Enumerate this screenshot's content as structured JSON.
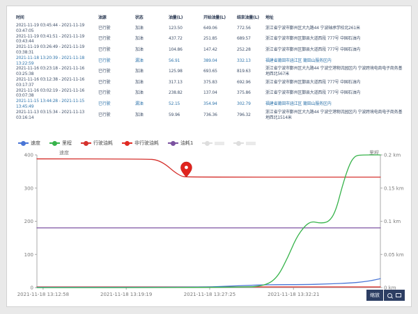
{
  "table": {
    "headers": [
      "时间",
      "油源",
      "状态",
      "油量(L)",
      "开始油量(L)",
      "结束油量(L)",
      "地址"
    ],
    "rows": [
      {
        "time": "2021-11-19 03:45:44 - 2021-11-19 03:47:05",
        "source": "已行驶",
        "status": "加油",
        "amount": "123.50",
        "start": "649.06",
        "end": "772.56",
        "addr": "浙江省宁波市鄞州区大九路44 宁波轴承学校北261米",
        "leak": false
      },
      {
        "time": "2021-11-19 03:41:51 - 2021-11-19 03:43:44",
        "source": "已行驶",
        "status": "加油",
        "amount": "437.72",
        "start": "251.85",
        "end": "689.57",
        "addr": "浙江省宁波市鄞州区鄞县大道西段 777号 中国石油内",
        "leak": false
      },
      {
        "time": "2021-11-19 03:26:49 - 2021-11-19 03:38:31",
        "source": "已行驶",
        "status": "加油",
        "amount": "104.86",
        "start": "147.42",
        "end": "252.28",
        "addr": "浙江省宁波市鄞州区鄞县大道西段 777号 中国石油内",
        "leak": false
      },
      {
        "time": "2021-11-18 13:20:39 - 2021-11-18 13:22:59",
        "source": "已行驶",
        "status": "漏油",
        "amount": "56.91",
        "start": "389.04",
        "end": "332.13",
        "addr": "福建省莆田市涵江区 莆田山服务区内",
        "leak": true
      },
      {
        "time": "2021-11-16 03:23:18 - 2021-11-16 03:25:38",
        "source": "已行驶",
        "status": "加油",
        "amount": "125.98",
        "start": "693.65",
        "end": "819.63",
        "addr": "浙江省宁波市鄞州区大九路44 宁波空港物流园区内 宁波跨境电商电子商务基地西北567米",
        "leak": false
      },
      {
        "time": "2021-11-16 03:12:38 - 2021-11-16 03:17:37",
        "source": "已行驶",
        "status": "加油",
        "amount": "317.13",
        "start": "375.83",
        "end": "692.96",
        "addr": "浙江省宁波市鄞州区鄞县大道西段 777号 中国石油内",
        "leak": false
      },
      {
        "time": "2021-11-16 03:02:19 - 2021-11-16 03:07:38",
        "source": "已行驶",
        "status": "加油",
        "amount": "238.82",
        "start": "137.04",
        "end": "375.86",
        "addr": "浙江省宁波市鄞州区鄞县大道西段 777号 中国石油内",
        "leak": false
      },
      {
        "time": "2021-11-15 13:44:28 - 2021-11-15 13:45:49",
        "source": "已行驶",
        "status": "漏油",
        "amount": "52.15",
        "start": "354.94",
        "end": "302.79",
        "addr": "福建省莆田市涵江区 莆田山服务区内",
        "leak": true
      },
      {
        "time": "2021-11-13 03:15:34 - 2021-11-13 03:16:14",
        "source": "已行驶",
        "status": "加油",
        "amount": "59.96",
        "start": "736.36",
        "end": "796.32",
        "addr": "浙江省宁波市鄞州区大九路44 宁波空港物流园区内 宁波跨境电商电子商务基地西北1514米",
        "leak": false
      }
    ]
  },
  "toolbar": {
    "zoom_label": "缩放"
  },
  "chart_data": {
    "type": "line",
    "ylabel_left": "速度",
    "ylabel_right": "里程",
    "ylim_left": [
      0,
      400
    ],
    "ylim_right": [
      0,
      0.2
    ],
    "yticks_left": [
      0,
      100,
      200,
      300,
      400
    ],
    "yticks_right": [
      {
        "v": 0,
        "label": "0 km"
      },
      {
        "v": 0.05,
        "label": "0.05 km"
      },
      {
        "v": 0.1,
        "label": "0.1 km"
      },
      {
        "v": 0.15,
        "label": "0.15 km"
      },
      {
        "v": 0.2,
        "label": "0.2 km"
      }
    ],
    "xticks": [
      {
        "t": 0.018,
        "label": "2021-11-18 13:12:58"
      },
      {
        "t": 0.26,
        "label": "2021-11-18 13:19:19"
      },
      {
        "t": 0.503,
        "label": "2021-11-18 13:27:25"
      },
      {
        "t": 0.747,
        "label": "2021-11-18 13:32:21"
      }
    ],
    "legend": [
      {
        "label": "速度",
        "color": "#4a76d6",
        "disabled": false
      },
      {
        "label": "里程",
        "color": "#36b34a",
        "disabled": false
      },
      {
        "label": "行驶油耗",
        "color": "#d5312d",
        "disabled": false
      },
      {
        "label": "非行驶油耗",
        "color": "#e02a22",
        "disabled": false
      },
      {
        "label": "油耗1",
        "color": "#7b52a0",
        "disabled": false
      },
      {
        "label": "",
        "color": "#d3d3d3",
        "disabled": true
      },
      {
        "label": "",
        "color": "#d3d3d3",
        "disabled": true
      }
    ],
    "series": [
      {
        "name": "油耗1",
        "axis": "left",
        "color": "#7b52a0",
        "points": [
          [
            0,
            180
          ],
          [
            1,
            180
          ]
        ]
      },
      {
        "name": "非行驶油耗",
        "axis": "left",
        "color": "#e02a22",
        "points": [
          [
            0,
            2
          ],
          [
            1,
            2
          ]
        ]
      },
      {
        "name": "行驶油耗",
        "axis": "left",
        "color": "#d5312d",
        "points": [
          [
            0,
            388
          ],
          [
            0.32,
            388
          ],
          [
            0.35,
            385
          ],
          [
            0.375,
            371
          ],
          [
            0.4,
            349
          ],
          [
            0.42,
            336
          ],
          [
            0.435,
            333
          ],
          [
            1,
            333
          ]
        ],
        "marker": {
          "t": 0.435,
          "v": 333,
          "color": "#e0241e"
        }
      },
      {
        "name": "速度",
        "axis": "left",
        "color": "#4a76d6",
        "points": [
          [
            0,
            1
          ],
          [
            0.48,
            1
          ],
          [
            0.55,
            4
          ],
          [
            0.62,
            7
          ],
          [
            0.68,
            9
          ],
          [
            0.78,
            9
          ],
          [
            0.85,
            11
          ],
          [
            0.92,
            14
          ],
          [
            0.97,
            20
          ],
          [
            1,
            27
          ]
        ]
      },
      {
        "name": "里程",
        "axis": "right",
        "color": "#36b34a",
        "points": [
          [
            0,
            0
          ],
          [
            0.6,
            0
          ],
          [
            0.665,
            0.003
          ],
          [
            0.7,
            0.015
          ],
          [
            0.73,
            0.045
          ],
          [
            0.755,
            0.075
          ],
          [
            0.78,
            0.093
          ],
          [
            0.8,
            0.1
          ],
          [
            0.825,
            0.097
          ],
          [
            0.85,
            0.099
          ],
          [
            0.87,
            0.115
          ],
          [
            0.89,
            0.155
          ],
          [
            0.91,
            0.186
          ],
          [
            0.925,
            0.198
          ],
          [
            0.94,
            0.2
          ],
          [
            1,
            0.2
          ]
        ]
      }
    ]
  }
}
